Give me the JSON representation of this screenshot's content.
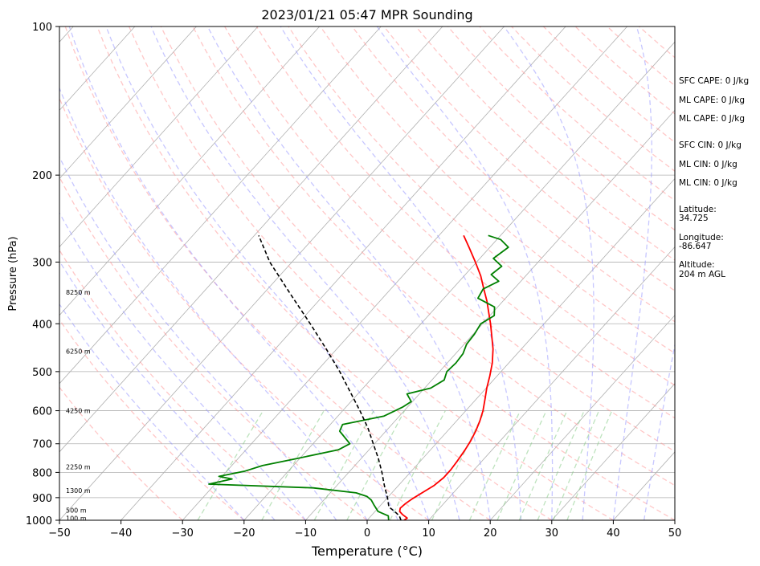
{
  "chart_data": {
    "type": "line",
    "title": "2023/01/21 05:47 MPR Sounding",
    "xlabel": "Temperature (°C)",
    "ylabel": "Pressure (hPa)",
    "xlim": [
      -50,
      50
    ],
    "ylim": [
      1000,
      100
    ],
    "y_scale": "log",
    "x_ticks": [
      "−50",
      "−40",
      "−30",
      "−20",
      "−10",
      "0",
      "10",
      "20",
      "30",
      "40",
      "50"
    ],
    "y_ticks": [
      {
        "p": 1000,
        "label": "1000"
      },
      {
        "p": 900,
        "label": "900"
      },
      {
        "p": 800,
        "label": "800"
      },
      {
        "p": 700,
        "label": "700"
      },
      {
        "p": 600,
        "label": "600"
      },
      {
        "p": 500,
        "label": "500"
      },
      {
        "p": 400,
        "label": "400"
      },
      {
        "p": 300,
        "label": "300"
      },
      {
        "p": 200,
        "label": "200"
      },
      {
        "p": 100,
        "label": "100"
      }
    ],
    "height_labels": [
      {
        "p": 990,
        "label": "100 m"
      },
      {
        "p": 955,
        "label": "500 m"
      },
      {
        "p": 870,
        "label": "1300 m"
      },
      {
        "p": 780,
        "label": "2250 m"
      },
      {
        "p": 600,
        "label": "4250 m"
      },
      {
        "p": 455,
        "label": "6250 m"
      },
      {
        "p": 345,
        "label": "8250 m"
      }
    ],
    "grid": true,
    "series": [
      {
        "color": "#ff0000",
        "points": [
          [
            1000,
            6.0
          ],
          [
            990,
            6.2
          ],
          [
            975,
            5.0
          ],
          [
            960,
            4.0
          ],
          [
            945,
            3.6
          ],
          [
            925,
            3.8
          ],
          [
            905,
            4.2
          ],
          [
            880,
            4.9
          ],
          [
            850,
            5.8
          ],
          [
            820,
            6.2
          ],
          [
            790,
            6.2
          ],
          [
            760,
            6.0
          ],
          [
            720,
            5.6
          ],
          [
            690,
            5.2
          ],
          [
            660,
            4.6
          ],
          [
            630,
            3.8
          ],
          [
            600,
            2.8
          ],
          [
            570,
            1.5
          ],
          [
            540,
            0.1
          ],
          [
            510,
            -1.2
          ],
          [
            480,
            -2.7
          ],
          [
            450,
            -4.6
          ],
          [
            420,
            -7.0
          ],
          [
            400,
            -8.7
          ],
          [
            380,
            -10.6
          ],
          [
            360,
            -12.6
          ],
          [
            340,
            -14.9
          ],
          [
            320,
            -17.3
          ],
          [
            300,
            -20.2
          ],
          [
            280,
            -23.4
          ],
          [
            265,
            -26.0
          ]
        ]
      },
      {
        "color": "#008000",
        "points": [
          [
            1000,
            3.5
          ],
          [
            980,
            2.8
          ],
          [
            960,
            0.5
          ],
          [
            930,
            -1.2
          ],
          [
            910,
            -2.3
          ],
          [
            895,
            -3.5
          ],
          [
            880,
            -5.8
          ],
          [
            860,
            -13.5
          ],
          [
            845,
            -31.0
          ],
          [
            825,
            -28.0
          ],
          [
            815,
            -30.5
          ],
          [
            795,
            -27.0
          ],
          [
            775,
            -25.0
          ],
          [
            750,
            -20.5
          ],
          [
            720,
            -15.0
          ],
          [
            700,
            -14.0
          ],
          [
            660,
            -17.5
          ],
          [
            640,
            -18.0
          ],
          [
            615,
            -12.5
          ],
          [
            590,
            -10.8
          ],
          [
            575,
            -10.2
          ],
          [
            555,
            -12.0
          ],
          [
            540,
            -9.0
          ],
          [
            520,
            -8.0
          ],
          [
            500,
            -8.8
          ],
          [
            480,
            -8.6
          ],
          [
            460,
            -8.8
          ],
          [
            440,
            -9.6
          ],
          [
            420,
            -9.8
          ],
          [
            400,
            -10.3
          ],
          [
            385,
            -9.3
          ],
          [
            370,
            -10.5
          ],
          [
            355,
            -14.5
          ],
          [
            340,
            -15.0
          ],
          [
            328,
            -13.6
          ],
          [
            318,
            -15.8
          ],
          [
            306,
            -15.3
          ],
          [
            295,
            -17.8
          ],
          [
            280,
            -17.0
          ],
          [
            270,
            -19.4
          ],
          [
            265,
            -22.0
          ]
        ]
      },
      {
        "color": "#000000",
        "style": "dashed",
        "points": [
          [
            1000,
            5.5
          ],
          [
            980,
            4.6
          ],
          [
            960,
            3.2
          ],
          [
            940,
            1.6
          ],
          [
            900,
            0.0
          ],
          [
            850,
            -2.3
          ],
          [
            800,
            -4.6
          ],
          [
            750,
            -7.2
          ],
          [
            700,
            -10.2
          ],
          [
            650,
            -13.4
          ],
          [
            600,
            -17.2
          ],
          [
            550,
            -21.5
          ],
          [
            500,
            -26.2
          ],
          [
            450,
            -31.7
          ],
          [
            400,
            -38.0
          ],
          [
            350,
            -45.3
          ],
          [
            300,
            -53.6
          ],
          [
            265,
            -59.3
          ]
        ]
      }
    ],
    "annotations": [
      "SFC CAPE: 0 J/kg",
      "ML CAPE: 0 J/kg",
      "ML CAPE: 0 J/kg",
      "SFC CIN: 0 J/kg",
      "ML CIN: 0 J/kg",
      "ML CIN: 0 J/kg",
      "Latitude:",
      "34.725",
      "Longitude:",
      "-86.647",
      "Altitude:",
      "204 m AGL"
    ],
    "colors": {
      "isotherm": "#b0b0b0",
      "dry_adiabat": "#ff9999",
      "moist_adiabat": "#9999ff",
      "mixing_ratio": "#88cc88",
      "grid": "#b0b0b0"
    }
  }
}
